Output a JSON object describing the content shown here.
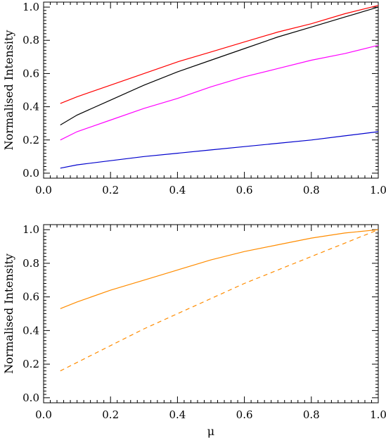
{
  "chart_data": [
    {
      "type": "line",
      "title": "",
      "xlabel": "",
      "ylabel": "Normalised Intensity",
      "xlim": [
        0.0,
        1.0
      ],
      "ylim": [
        -0.03,
        1.03
      ],
      "xticks": [
        "0.0",
        "0.2",
        "0.4",
        "0.6",
        "0.8",
        "1.0"
      ],
      "yticks": [
        "0.0",
        "0.2",
        "0.4",
        "0.6",
        "0.8",
        "1.0"
      ],
      "grid": false,
      "series": [
        {
          "color": "#ff0000",
          "dash": "solid",
          "x": [
            0.05,
            0.1,
            0.2,
            0.3,
            0.4,
            0.5,
            0.6,
            0.7,
            0.8,
            0.9,
            1.0
          ],
          "y": [
            0.42,
            0.46,
            0.53,
            0.6,
            0.67,
            0.73,
            0.79,
            0.85,
            0.9,
            0.96,
            1.01
          ]
        },
        {
          "color": "#000000",
          "dash": "solid",
          "x": [
            0.05,
            0.1,
            0.2,
            0.3,
            0.4,
            0.5,
            0.6,
            0.7,
            0.8,
            0.9,
            1.0
          ],
          "y": [
            0.29,
            0.35,
            0.44,
            0.53,
            0.61,
            0.68,
            0.75,
            0.82,
            0.88,
            0.94,
            1.0
          ]
        },
        {
          "color": "#ff00ff",
          "dash": "solid",
          "x": [
            0.05,
            0.1,
            0.2,
            0.3,
            0.4,
            0.5,
            0.6,
            0.7,
            0.8,
            0.9,
            1.0
          ],
          "y": [
            0.2,
            0.25,
            0.32,
            0.39,
            0.45,
            0.52,
            0.58,
            0.63,
            0.68,
            0.72,
            0.77
          ]
        },
        {
          "color": "#0000cd",
          "dash": "solid",
          "x": [
            0.05,
            0.1,
            0.2,
            0.3,
            0.4,
            0.5,
            0.6,
            0.7,
            0.8,
            0.9,
            1.0
          ],
          "y": [
            0.03,
            0.05,
            0.075,
            0.1,
            0.12,
            0.14,
            0.16,
            0.18,
            0.2,
            0.225,
            0.25
          ]
        }
      ]
    },
    {
      "type": "line",
      "title": "",
      "xlabel": "μ",
      "ylabel": "Normalised Intensity",
      "xlim": [
        0.0,
        1.0
      ],
      "ylim": [
        -0.03,
        1.03
      ],
      "xticks": [
        "0.0",
        "0.2",
        "0.4",
        "0.6",
        "0.8",
        "1.0"
      ],
      "yticks": [
        "0.0",
        "0.2",
        "0.4",
        "0.6",
        "0.8",
        "1.0"
      ],
      "grid": false,
      "series": [
        {
          "color": "#ff8c00",
          "dash": "solid",
          "x": [
            0.05,
            0.1,
            0.2,
            0.3,
            0.4,
            0.5,
            0.6,
            0.7,
            0.8,
            0.9,
            1.0
          ],
          "y": [
            0.53,
            0.57,
            0.64,
            0.7,
            0.76,
            0.82,
            0.87,
            0.91,
            0.95,
            0.98,
            1.0
          ]
        },
        {
          "color": "#ff8c00",
          "dash": "dashed",
          "x": [
            0.05,
            0.1,
            0.2,
            0.3,
            0.4,
            0.5,
            0.6,
            0.7,
            0.8,
            0.9,
            1.0
          ],
          "y": [
            0.16,
            0.21,
            0.31,
            0.41,
            0.5,
            0.59,
            0.68,
            0.76,
            0.84,
            0.92,
            1.0
          ]
        }
      ]
    }
  ]
}
